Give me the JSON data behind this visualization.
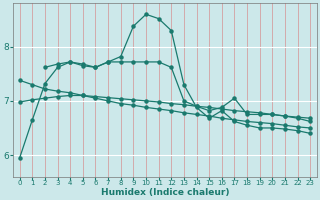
{
  "xlabel": "Humidex (Indice chaleur)",
  "bg_color": "#cce8ea",
  "grid_color_v": "#d4a0a0",
  "grid_color_h": "#ffffff",
  "line_color": "#1a7a6e",
  "x_ticks": [
    0,
    1,
    2,
    3,
    4,
    5,
    6,
    7,
    8,
    9,
    10,
    11,
    12,
    13,
    14,
    15,
    16,
    17,
    18,
    19,
    20,
    21,
    22,
    23
  ],
  "y_ticks": [
    6,
    7,
    8
  ],
  "ylim": [
    5.6,
    8.8
  ],
  "xlim": [
    -0.5,
    23.5
  ],
  "curve1_x": [
    0,
    1,
    2,
    3,
    4,
    5,
    6,
    7,
    8,
    9,
    10,
    11,
    12,
    13,
    14,
    15,
    16,
    17,
    18,
    19,
    20,
    21,
    22,
    23
  ],
  "curve1_y": [
    5.95,
    6.65,
    7.32,
    7.62,
    7.72,
    7.68,
    7.62,
    7.72,
    7.82,
    8.38,
    8.6,
    8.52,
    8.3,
    7.3,
    6.88,
    6.68,
    6.82,
    6.62,
    6.55,
    6.5,
    6.5,
    6.48,
    6.45,
    6.4
  ],
  "curve2_x": [
    2,
    3,
    4,
    5,
    6,
    7,
    8,
    9,
    10,
    11,
    12,
    13,
    14,
    15,
    16,
    17,
    18,
    19,
    20,
    21,
    22,
    23
  ],
  "curve2_y": [
    7.62,
    7.68,
    7.72,
    7.65,
    7.62,
    7.72,
    7.72,
    7.72,
    7.72,
    7.72,
    7.62,
    7.0,
    6.9,
    6.82,
    6.88,
    7.05,
    6.75,
    6.75,
    6.75,
    6.72,
    6.68,
    6.62
  ],
  "curve3_x": [
    0,
    1,
    2,
    3,
    4,
    5,
    6,
    7,
    8,
    9,
    10,
    11,
    12,
    13,
    14,
    15,
    16,
    17,
    18,
    19,
    20,
    21,
    22,
    23
  ],
  "curve3_y": [
    7.38,
    7.3,
    7.22,
    7.18,
    7.15,
    7.1,
    7.05,
    7.0,
    6.95,
    6.92,
    6.88,
    6.85,
    6.82,
    6.78,
    6.75,
    6.72,
    6.68,
    6.65,
    6.62,
    6.6,
    6.58,
    6.55,
    6.52,
    6.5
  ],
  "curve4_x": [
    0,
    1,
    2,
    3,
    4,
    5,
    6,
    7,
    8,
    9,
    10,
    11,
    12,
    13,
    14,
    15,
    16,
    17,
    18,
    19,
    20,
    21,
    22,
    23
  ],
  "curve4_y": [
    6.98,
    7.02,
    7.05,
    7.08,
    7.1,
    7.1,
    7.08,
    7.06,
    7.04,
    7.02,
    7.0,
    6.98,
    6.95,
    6.93,
    6.9,
    6.88,
    6.85,
    6.82,
    6.8,
    6.78,
    6.75,
    6.72,
    6.7,
    6.68
  ]
}
